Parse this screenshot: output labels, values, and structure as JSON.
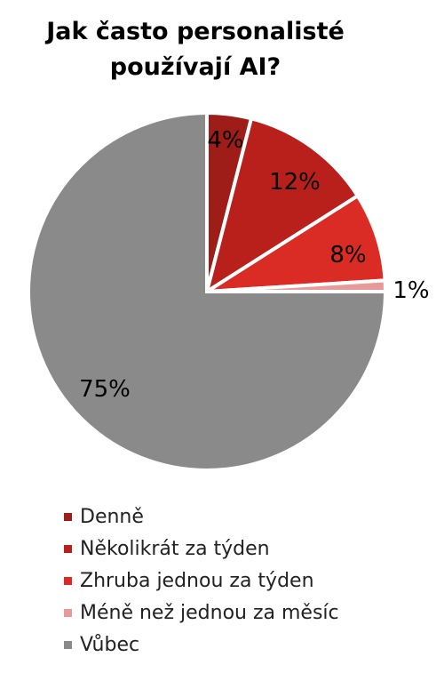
{
  "chart_data": {
    "type": "pie",
    "title": "Jak často personalisté používají AI?",
    "title_lines": [
      "Jak často personalisté",
      "používají AI?"
    ],
    "start_angle_deg": 0,
    "direction": "clockwise",
    "slices": [
      {
        "label": "Denně",
        "value": 4,
        "display": "4%",
        "color": "#9e1d18"
      },
      {
        "label": "Několikrát za týden",
        "value": 12,
        "display": "12%",
        "color": "#b9201c"
      },
      {
        "label": "Zhruba jednou za týden",
        "value": 8,
        "display": "8%",
        "color": "#db2b25"
      },
      {
        "label": "Méně než jednou za měsíc",
        "value": 1,
        "display": "1%",
        "color": "#e89a9a"
      },
      {
        "label": "Vůbec",
        "value": 75,
        "display": "75%",
        "color": "#8a8a8a"
      }
    ],
    "legend_position": "bottom"
  }
}
